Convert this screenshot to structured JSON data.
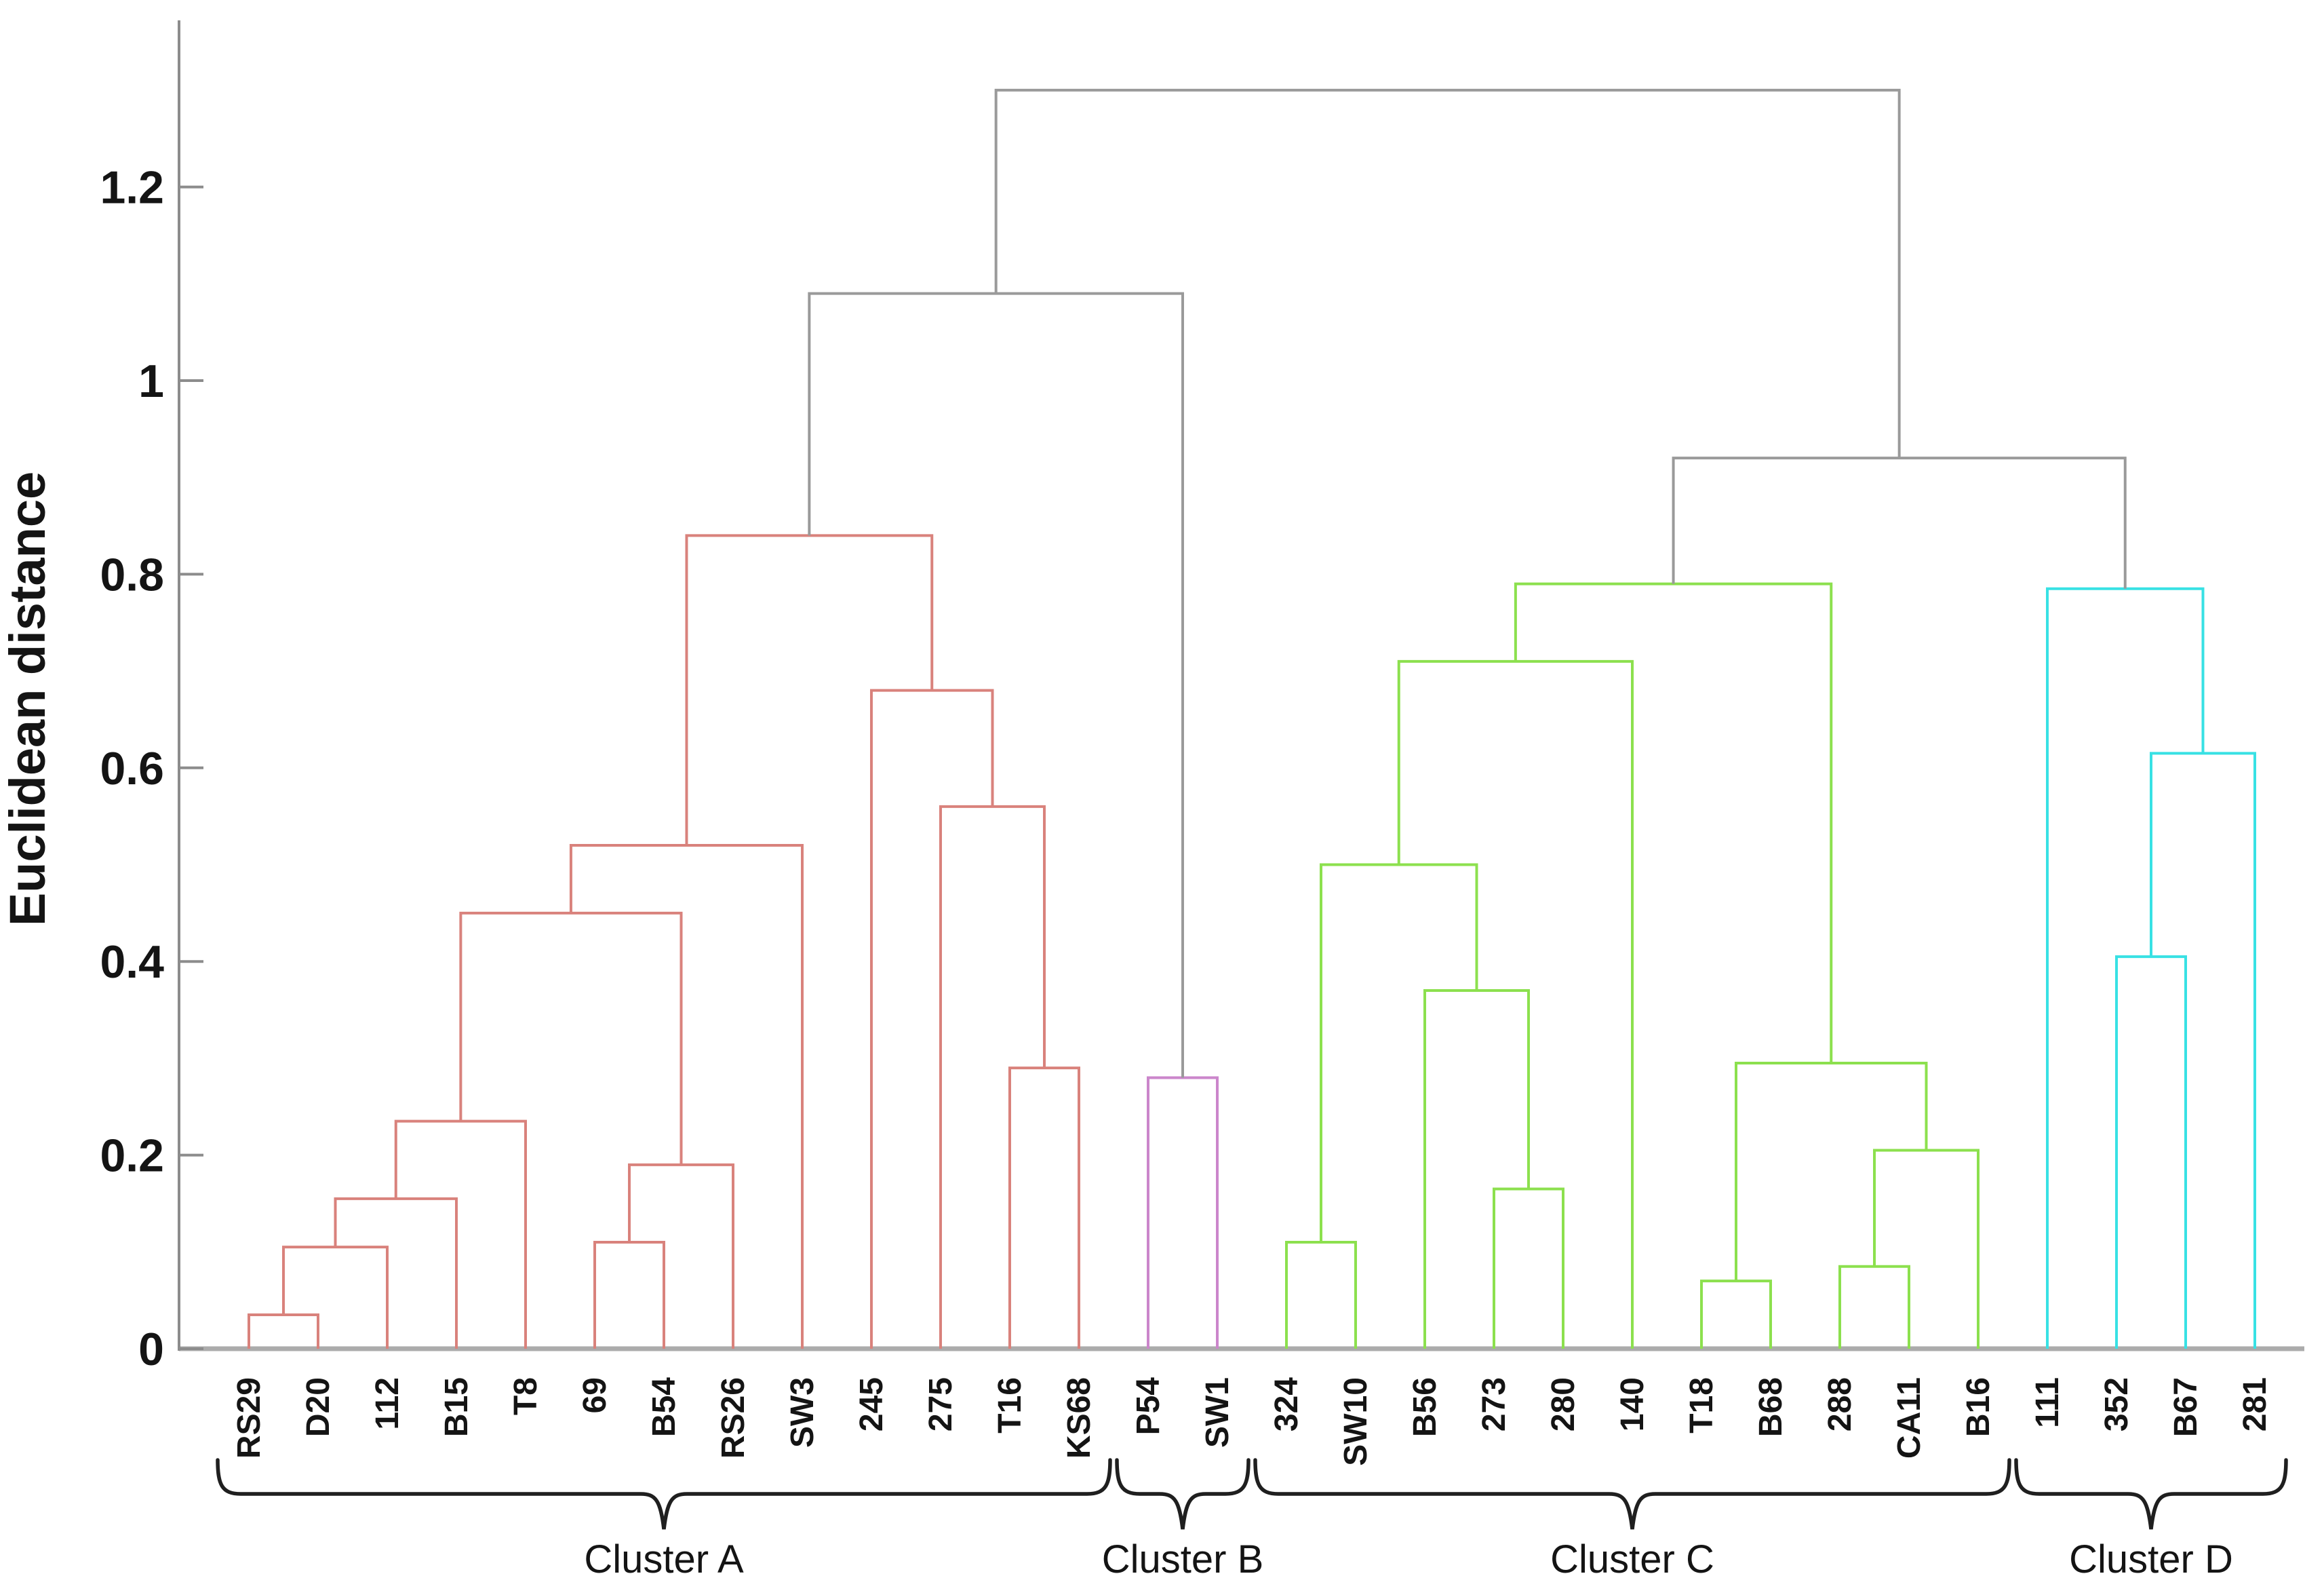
{
  "figure": {
    "ylabel": "Euclidean distance"
  },
  "chart_data": {
    "type": "dendrogram",
    "title": "",
    "xlabel": "",
    "ylabel": "Euclidean distance",
    "ylim": [
      0,
      1.37
    ],
    "yticks": [
      0,
      0.2,
      0.4,
      0.6,
      0.8,
      1,
      1.2
    ],
    "ytick_labels": [
      "0",
      "0.2",
      "0.4",
      "0.6",
      "0.8",
      "1",
      "1.2"
    ],
    "grid": "off",
    "legend": "none",
    "leaves": [
      "RS29",
      "D20",
      "112",
      "B15",
      "T8",
      "69",
      "B54",
      "RS26",
      "SW3",
      "245",
      "275",
      "T16",
      "KS68",
      "P54",
      "SW1",
      "324",
      "SW10",
      "B56",
      "273",
      "280",
      "140",
      "T18",
      "B68",
      "288",
      "CA11",
      "B16",
      "111",
      "352",
      "B67",
      "281"
    ],
    "merges": [
      {
        "left": "L0",
        "right": "L1",
        "height": 0.035,
        "color": "A"
      },
      {
        "left": "M0",
        "right": "L2",
        "height": 0.105,
        "color": "A"
      },
      {
        "left": "M1",
        "right": "L3",
        "height": 0.155,
        "color": "A"
      },
      {
        "left": "M2",
        "right": "L4",
        "height": 0.235,
        "color": "A"
      },
      {
        "left": "L5",
        "right": "L6",
        "height": 0.11,
        "color": "A"
      },
      {
        "left": "M4",
        "right": "L7",
        "height": 0.19,
        "color": "A"
      },
      {
        "left": "M3",
        "right": "M5",
        "height": 0.45,
        "color": "A"
      },
      {
        "left": "M6",
        "right": "L8",
        "height": 0.52,
        "color": "A"
      },
      {
        "left": "L11",
        "right": "L12",
        "height": 0.29,
        "color": "A"
      },
      {
        "left": "L10",
        "right": "M8",
        "height": 0.56,
        "color": "A"
      },
      {
        "left": "L9",
        "right": "M9",
        "height": 0.68,
        "color": "A"
      },
      {
        "left": "M7",
        "right": "M10",
        "height": 0.84,
        "color": "A"
      },
      {
        "left": "L13",
        "right": "L14",
        "height": 0.28,
        "color": "B"
      },
      {
        "left": "L15",
        "right": "L16",
        "height": 0.11,
        "color": "C"
      },
      {
        "left": "L18",
        "right": "L19",
        "height": 0.165,
        "color": "C"
      },
      {
        "left": "L17",
        "right": "M14",
        "height": 0.37,
        "color": "C"
      },
      {
        "left": "M13",
        "right": "M15",
        "height": 0.5,
        "color": "C"
      },
      {
        "left": "M16",
        "right": "L20",
        "height": 0.71,
        "color": "C"
      },
      {
        "left": "L21",
        "right": "L22",
        "height": 0.07,
        "color": "C"
      },
      {
        "left": "L23",
        "right": "L24",
        "height": 0.085,
        "color": "C"
      },
      {
        "left": "M19",
        "right": "L25",
        "height": 0.205,
        "color": "C"
      },
      {
        "left": "M18",
        "right": "M20",
        "height": 0.295,
        "color": "C"
      },
      {
        "left": "M17",
        "right": "M21",
        "height": 0.79,
        "color": "C"
      },
      {
        "left": "L27",
        "right": "L28",
        "height": 0.405,
        "color": "D"
      },
      {
        "left": "M23",
        "right": "L29",
        "height": 0.615,
        "color": "D"
      },
      {
        "left": "L26",
        "right": "M24",
        "height": 0.785,
        "color": "D"
      },
      {
        "left": "M11",
        "right": "M12",
        "height": 1.09,
        "color": "gray"
      },
      {
        "left": "M22",
        "right": "M25",
        "height": 0.92,
        "color": "gray"
      },
      {
        "left": "M26",
        "right": "M27",
        "height": 1.3,
        "color": "gray"
      }
    ],
    "colors": {
      "A": "#d9827c",
      "B": "#cb86cb",
      "C": "#8ce04e",
      "D": "#38e1e4",
      "gray": "#9a9a9a",
      "axis": "#8c8c8c",
      "baseline": "#ababab",
      "text": "#141414",
      "bracket": "#1f1f1f"
    },
    "cluster_brackets": [
      {
        "label": "Cluster A",
        "from": 0,
        "to": 12
      },
      {
        "label": "Cluster B",
        "from": 13,
        "to": 14
      },
      {
        "label": "Cluster C",
        "from": 15,
        "to": 25
      },
      {
        "label": "Cluster D",
        "from": 26,
        "to": 29
      }
    ]
  }
}
